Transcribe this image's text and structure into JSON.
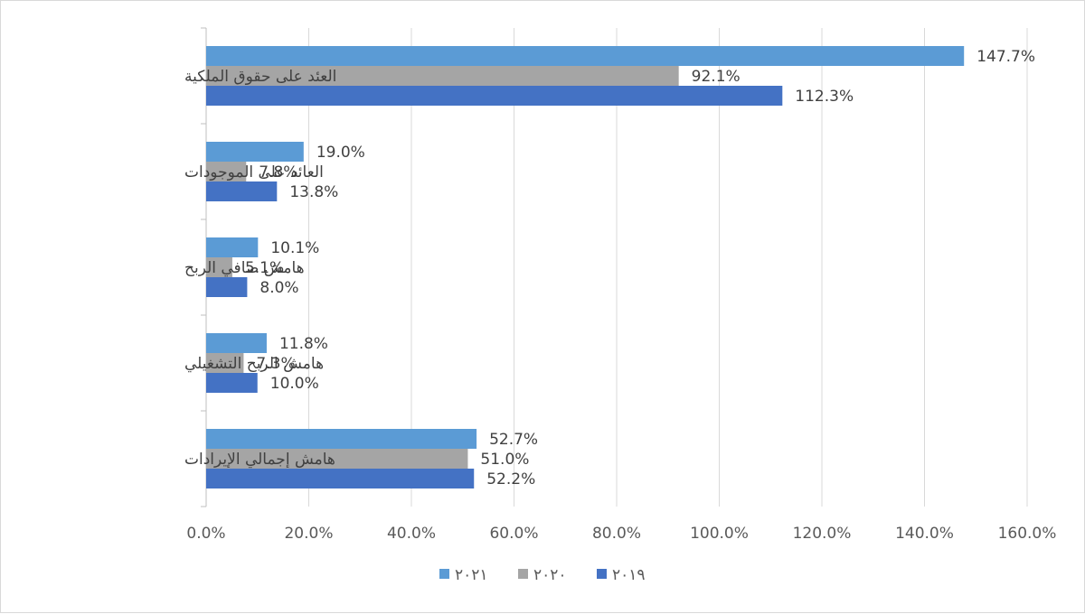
{
  "chart_data": {
    "type": "bar",
    "orientation": "horizontal",
    "title": "",
    "xlabel": "",
    "ylabel": "",
    "xlim": [
      0,
      160
    ],
    "x_ticks": [
      "0.0%",
      "20.0%",
      "40.0%",
      "60.0%",
      "80.0%",
      "100.0%",
      "120.0%",
      "140.0%",
      "160.0%"
    ],
    "grid": true,
    "legend_position": "bottom",
    "categories": [
      "العئد على حقوق الملكية",
      "العائد على الموجودات",
      "هامش صافي الربح",
      "هامش الربح التشغيلي",
      "هامش إجمالي الإيرادات"
    ],
    "series": [
      {
        "name": "٢٠٢١",
        "color": "#5b9bd5",
        "values": [
          147.7,
          19.0,
          10.1,
          11.8,
          52.7
        ],
        "labels": [
          "147.7%",
          "19.0%",
          "10.1%",
          "11.8%",
          "52.7%"
        ]
      },
      {
        "name": "٢٠٢٠",
        "color": "#a5a5a5",
        "values": [
          92.1,
          7.8,
          5.1,
          7.3,
          51.0
        ],
        "labels": [
          "92.1%",
          "7.8%",
          "5.1%",
          "7.3%",
          "51.0%"
        ]
      },
      {
        "name": "٢٠١٩",
        "color": "#4472c4",
        "values": [
          112.3,
          13.8,
          8.0,
          10.0,
          52.2
        ],
        "labels": [
          "112.3%",
          "13.8%",
          "8.0%",
          "10.0%",
          "52.2%"
        ]
      }
    ]
  }
}
